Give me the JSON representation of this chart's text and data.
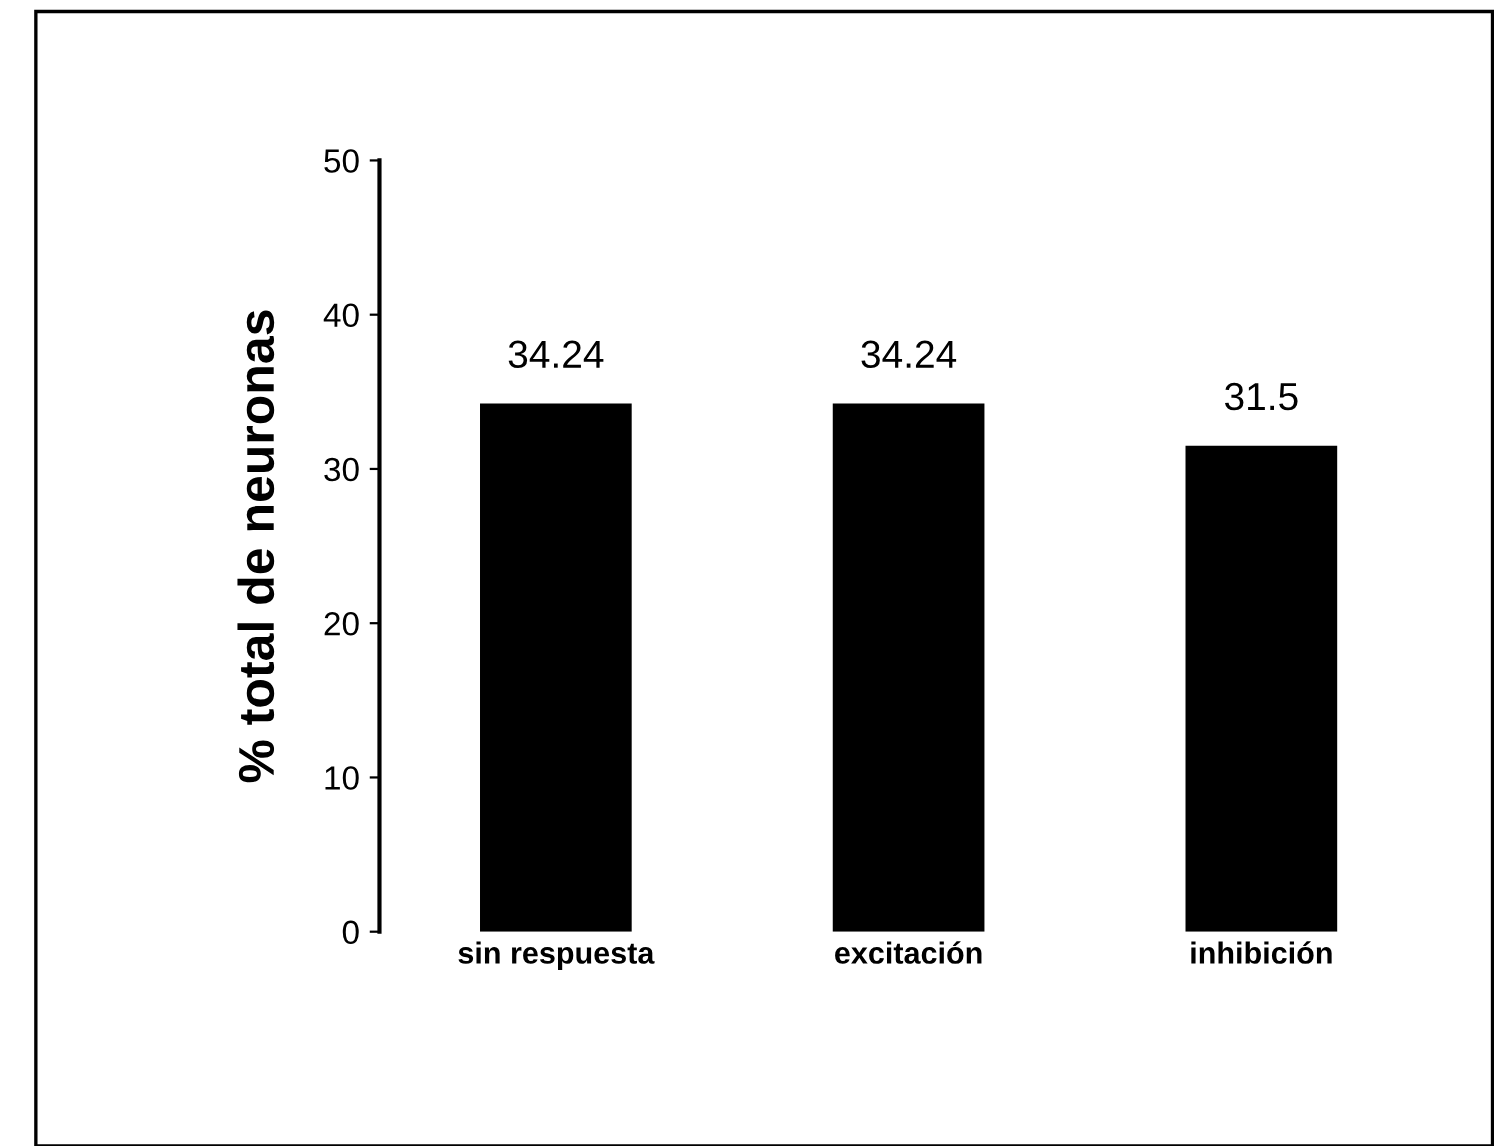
{
  "chart_data": {
    "type": "bar",
    "ylabel": "% total de neuronas",
    "categories": [
      "sin respuesta",
      "excitación",
      "inhibición"
    ],
    "values": [
      34.24,
      34.24,
      31.5
    ],
    "color": "#000000",
    "ylim": [
      0,
      50
    ],
    "yticks": [
      0,
      10,
      20,
      30,
      40,
      50
    ],
    "grid": false,
    "data_labels": true
  }
}
